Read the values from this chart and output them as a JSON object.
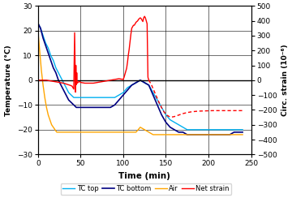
{
  "xlabel": "Time (min)",
  "ylabel_left": "Temperature (°C)",
  "ylabel_right": "Circ. strain (10⁻⁶)",
  "xlim": [
    0,
    240
  ],
  "ylim_left": [
    -30,
    30
  ],
  "ylim_right": [
    -500,
    500
  ],
  "xticks": [
    0,
    50,
    100,
    150,
    200,
    250
  ],
  "yticks_left": [
    -30,
    -20,
    -10,
    0,
    10,
    20,
    30
  ],
  "yticks_right": [
    -500,
    -400,
    -300,
    -200,
    -100,
    0,
    100,
    200,
    300,
    400,
    500
  ],
  "legend_labels": [
    "TC top",
    "TC bottom",
    "Air",
    "Net strain"
  ],
  "colors": {
    "tc_top": "#00b0f0",
    "tc_bottom": "#000080",
    "air": "#ffa500",
    "net_strain": "#ff0000"
  },
  "tc_top": {
    "x": [
      0,
      3,
      6,
      9,
      12,
      15,
      18,
      21,
      24,
      27,
      30,
      33,
      36,
      39,
      42,
      45,
      48,
      51,
      54,
      57,
      60,
      65,
      70,
      75,
      80,
      85,
      90,
      95,
      100,
      105,
      110,
      115,
      120,
      125,
      130,
      135,
      140,
      145,
      150,
      155,
      160,
      165,
      170,
      175,
      180,
      185,
      190,
      195,
      200,
      205,
      210,
      215,
      220,
      225,
      230,
      235,
      240
    ],
    "y": [
      23,
      21,
      18,
      15,
      13,
      10,
      8,
      5,
      3,
      1,
      -1,
      -3,
      -5,
      -6,
      -7,
      -7,
      -7,
      -7,
      -7,
      -7,
      -7,
      -7,
      -7,
      -7,
      -7,
      -7,
      -7,
      -6,
      -5,
      -3,
      -2,
      -1,
      0,
      -1,
      -2,
      -5,
      -8,
      -11,
      -14,
      -16,
      -17,
      -18,
      -19,
      -20,
      -20,
      -20,
      -20,
      -20,
      -20,
      -20,
      -20,
      -20,
      -20,
      -20,
      -20,
      -20,
      -20
    ]
  },
  "tc_bottom": {
    "x": [
      0,
      3,
      6,
      9,
      12,
      15,
      18,
      21,
      24,
      27,
      30,
      33,
      36,
      39,
      42,
      45,
      48,
      51,
      54,
      57,
      60,
      65,
      70,
      75,
      80,
      85,
      90,
      95,
      100,
      105,
      110,
      115,
      120,
      125,
      130,
      135,
      140,
      145,
      150,
      155,
      160,
      165,
      170,
      175,
      180,
      185,
      190,
      195,
      200,
      205,
      210,
      215,
      220,
      225,
      230,
      235,
      240
    ],
    "y": [
      23,
      21,
      17,
      14,
      11,
      8,
      5,
      3,
      0,
      -2,
      -4,
      -6,
      -8,
      -9,
      -10,
      -11,
      -11,
      -11,
      -11,
      -11,
      -11,
      -11,
      -11,
      -11,
      -11,
      -11,
      -10,
      -8,
      -6,
      -4,
      -2,
      -1,
      0,
      -1,
      -2,
      -6,
      -10,
      -14,
      -17,
      -19,
      -20,
      -21,
      -21,
      -22,
      -22,
      -22,
      -22,
      -22,
      -22,
      -22,
      -22,
      -22,
      -22,
      -22,
      -21,
      -21,
      -21
    ]
  },
  "air": {
    "x": [
      0,
      2,
      4,
      6,
      8,
      10,
      12,
      14,
      16,
      18,
      20,
      22,
      24,
      26,
      28,
      30,
      35,
      40,
      45,
      50,
      55,
      60,
      65,
      70,
      75,
      80,
      85,
      90,
      95,
      100,
      105,
      110,
      115,
      120,
      125,
      130,
      135,
      140,
      145,
      150,
      155,
      160,
      165,
      170,
      175,
      180,
      185,
      190,
      195,
      200,
      205,
      210,
      215,
      220,
      225,
      230,
      235,
      240
    ],
    "y": [
      20,
      12,
      4,
      -2,
      -7,
      -11,
      -14,
      -16,
      -18,
      -19,
      -20,
      -21,
      -21,
      -21,
      -21,
      -21,
      -21,
      -21,
      -21,
      -21,
      -21,
      -21,
      -21,
      -21,
      -21,
      -21,
      -21,
      -21,
      -21,
      -21,
      -21,
      -21,
      -21,
      -19,
      -20,
      -21,
      -22,
      -22,
      -22,
      -22,
      -22,
      -22,
      -22,
      -22,
      -22,
      -22,
      -22,
      -22,
      -22,
      -22,
      -22,
      -22,
      -22,
      -22,
      -22,
      -22,
      -22,
      -22
    ]
  },
  "net_strain_solid": {
    "x": [
      0,
      10,
      20,
      30,
      38,
      40,
      42,
      43,
      44,
      44.5,
      45,
      45.5,
      46,
      47,
      48,
      49,
      50,
      55,
      60,
      65,
      70,
      75,
      80,
      85,
      90,
      95,
      100,
      101,
      102,
      103,
      104,
      105,
      106,
      107,
      108,
      109,
      110,
      111,
      112,
      113,
      114,
      115,
      116,
      117,
      118,
      119,
      120,
      121,
      122,
      123,
      124,
      125,
      126,
      127,
      128,
      129,
      130
    ],
    "y": [
      0,
      0,
      -10,
      -20,
      -35,
      -40,
      -60,
      320,
      -80,
      100,
      -30,
      50,
      -20,
      -15,
      -10,
      -10,
      -15,
      -20,
      -20,
      -20,
      -15,
      -10,
      -5,
      0,
      5,
      10,
      5,
      20,
      40,
      60,
      80,
      120,
      170,
      210,
      260,
      310,
      350,
      360,
      370,
      370,
      380,
      390,
      395,
      400,
      410,
      415,
      420,
      415,
      405,
      395,
      420,
      430,
      420,
      400,
      380,
      20,
      0
    ]
  },
  "net_strain_dotted": {
    "x": [
      130,
      133,
      136,
      139,
      142,
      145,
      148,
      151,
      154,
      157,
      160,
      165,
      170,
      175,
      180,
      185,
      190,
      195,
      200,
      205,
      210,
      215,
      220,
      225,
      230,
      235,
      240
    ],
    "y": [
      0,
      -30,
      -70,
      -110,
      -150,
      -185,
      -215,
      -235,
      -245,
      -248,
      -245,
      -235,
      -225,
      -218,
      -213,
      -210,
      -208,
      -207,
      -206,
      -205,
      -205,
      -205,
      -205,
      -205,
      -205,
      -205,
      -205
    ]
  },
  "background_color": "#ffffff"
}
